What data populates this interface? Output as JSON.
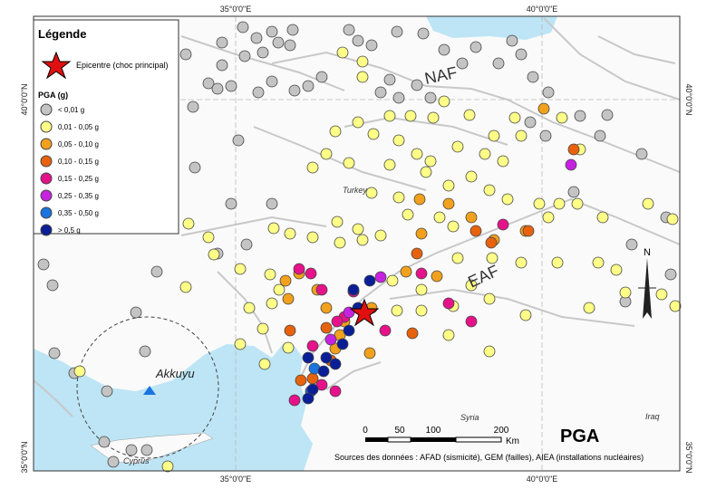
{
  "legend": {
    "title": "Légende",
    "epicenter": "Epicentre (choc principal)",
    "pga_title": "PGA (g)",
    "classes": [
      {
        "label": "< 0,01 g",
        "color": "#c4c4c4"
      },
      {
        "label": "0,01 - 0,05 g",
        "color": "#ffff88"
      },
      {
        "label": "0,05 - 0,10 g",
        "color": "#f2a11c"
      },
      {
        "label": "0,10 - 0,15 g",
        "color": "#e8620e"
      },
      {
        "label": "0,15 - 0,25 g",
        "color": "#e5128a"
      },
      {
        "label": "0,25 - 0,35 g",
        "color": "#c622e0"
      },
      {
        "label": "0,35 - 0,50 g",
        "color": "#1a74e0"
      },
      {
        "label": "> 0,5 g",
        "color": "#0a1f96"
      }
    ]
  },
  "graticule": {
    "top": [
      "35°0'0\"E",
      "40°0'0\"E"
    ],
    "bottom": [
      "35°0'0\"E",
      "40°0'0\"E"
    ],
    "left": [
      "40°0'0\"N",
      "35°0'0\"N"
    ],
    "right": [
      "40°0'0\"N",
      "35°0'0\"N"
    ]
  },
  "map_labels": {
    "naf": "NAF",
    "eaf": "EAF",
    "turkey": "Turkey",
    "syria": "Syria",
    "iraq": "Iraq",
    "cyprus": "Cyprus",
    "akkuyu": "Akkuyu"
  },
  "scale_bar": {
    "ticks": [
      "0",
      "50",
      "100",
      "200"
    ],
    "unit": "Km"
  },
  "north": "N",
  "title": "PGA",
  "sources": "Sources des données : AFAD (sismicité), GEM (failles), AIEA (installations nucléaires)"
}
